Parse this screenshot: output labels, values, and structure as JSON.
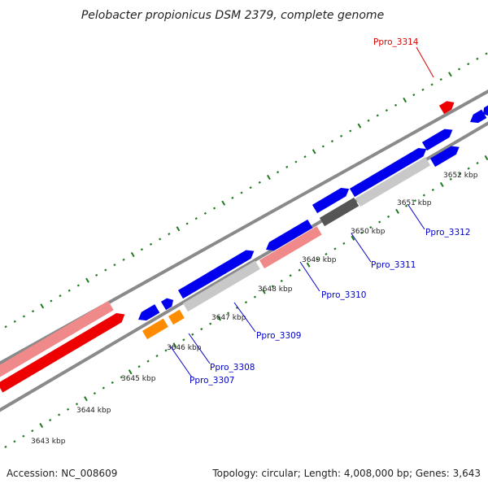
{
  "title": "Pelobacter propionicus DSM 2379, complete genome",
  "footer": {
    "accession": "Accession: NC_008609",
    "summary": "Topology: circular; Length: 4,008,000 bp; Genes: 3,643"
  },
  "colors": {
    "backbone": "#8a8a8a",
    "cds": "#0000ee",
    "cds_pink": "#f08a8a",
    "cds_red": "#ee0000",
    "orange": "#ff8c00",
    "light_grey": "#c8c8c8",
    "dark_grey": "#555555",
    "tick": "#1f7a1f",
    "label_blue": "#0000cc",
    "label_red": "#dd0000"
  },
  "ticks": [
    "3643 kbp",
    "3644 kbp",
    "3645 kbp",
    "3646 kbp",
    "3647 kbp",
    "3648 kbp",
    "3649 kbp",
    "3650 kbp",
    "3651 kbp",
    "3652 kbp"
  ],
  "genes": [
    {
      "name": "Ppro_3307",
      "color": "label_blue"
    },
    {
      "name": "Ppro_3308",
      "color": "label_blue"
    },
    {
      "name": "Ppro_3309",
      "color": "label_blue"
    },
    {
      "name": "Ppro_3310",
      "color": "label_blue"
    },
    {
      "name": "Ppro_3311",
      "color": "label_blue"
    },
    {
      "name": "Ppro_3312",
      "color": "label_blue"
    },
    {
      "name": "Ppro_3314",
      "color": "label_red"
    }
  ]
}
